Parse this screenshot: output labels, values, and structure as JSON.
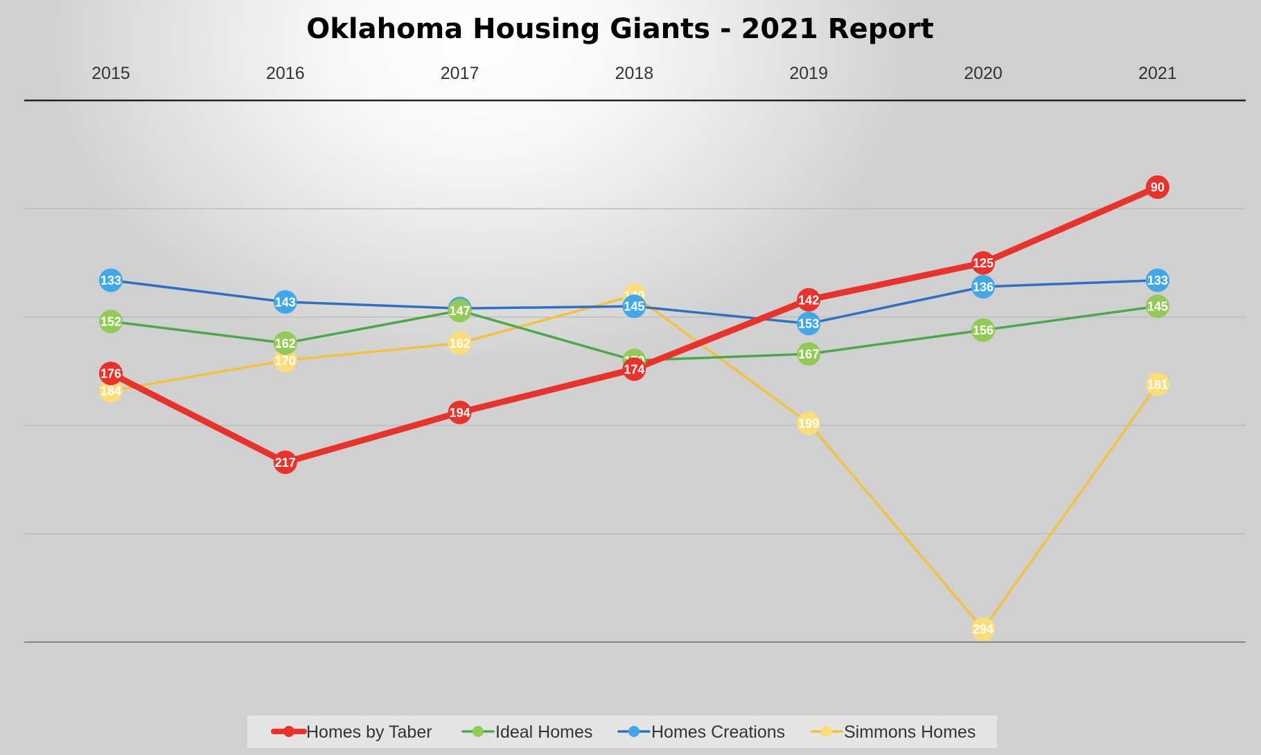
{
  "chart_data": {
    "type": "line",
    "title": "Oklahoma Housing Giants - 2021 Report",
    "xlabel": "",
    "ylabel": "",
    "y_axis_reversed": true,
    "ylim": [
      50,
      300
    ],
    "x_axis_position": "top",
    "grid": true,
    "legend_position": "bottom",
    "categories": [
      "2015",
      "2016",
      "2017",
      "2018",
      "2019",
      "2020",
      "2021"
    ],
    "series": [
      {
        "name": "Homes by Taber",
        "color": "#e8322b",
        "values": [
          176,
          217,
          194,
          174,
          142,
          125,
          90
        ]
      },
      {
        "name": "Ideal Homes",
        "color": "#4aa84a",
        "marker_color": "#93c956",
        "values": [
          152,
          162,
          147,
          170,
          167,
          156,
          145
        ]
      },
      {
        "name": "Homes Creations",
        "color": "#2e6fc4",
        "marker_color": "#41a7e8",
        "values": [
          133,
          143,
          146,
          145,
          153,
          136,
          133
        ]
      },
      {
        "name": "Simmons Homes",
        "color": "#f2c23f",
        "marker_color": "#fddc7a",
        "values": [
          184,
          170,
          162,
          140,
          199,
          294,
          181
        ]
      }
    ]
  }
}
